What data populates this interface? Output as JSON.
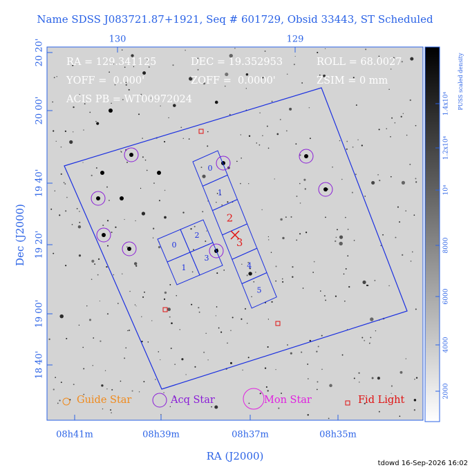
{
  "title": "Name SDSS J083721.87+1921, Seq # 601729, Obsid 33443, ST Scheduled",
  "info": {
    "ra": "RA = 129.341125",
    "dec": "DEC = 19.352953",
    "roll": "ROLL = 68.0027",
    "yoff": "YOFF =  0.000'",
    "zoff": "ZOFF =  0.0000'",
    "zsim": "ZSIM = 0 mm",
    "acis": "ACIS PB = WT00972024"
  },
  "top_axis": [
    "130",
    "129"
  ],
  "left_axis": [
    "20 20'",
    "20 00'",
    "19 40'",
    "19 20'",
    "19 00'",
    "18 40'"
  ],
  "bottom_axis": [
    "08h41m",
    "08h39m",
    "08h37m",
    "08h35m"
  ],
  "x_axis_title": "RA (J2000)",
  "y_axis_title": "Dec (J2000)",
  "acis_s_chips": [
    "0",
    "1",
    "2",
    "3",
    "4",
    "5"
  ],
  "acis_i_chips": [
    "0",
    "2",
    "1",
    "3"
  ],
  "legend": [
    "Guide Star",
    "Acq Star",
    "Mon Star",
    "Fid Light"
  ],
  "colorbar": {
    "title": "PUSS scaled density",
    "labels": [
      "2000",
      "4000",
      "6000",
      "8000",
      "10⁴",
      "1.2x10⁴",
      "1.4x10⁴"
    ]
  },
  "footer": "tdowd 16-Sep-2026 16:02"
}
